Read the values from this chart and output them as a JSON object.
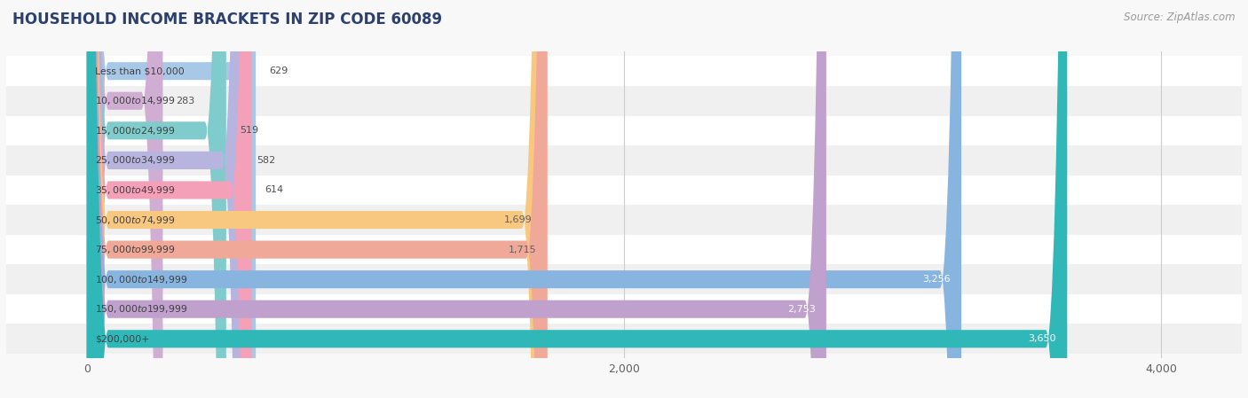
{
  "title": "HOUSEHOLD INCOME BRACKETS IN ZIP CODE 60089",
  "source": "Source: ZipAtlas.com",
  "categories": [
    "Less than $10,000",
    "$10,000 to $14,999",
    "$15,000 to $24,999",
    "$25,000 to $34,999",
    "$35,000 to $49,999",
    "$50,000 to $74,999",
    "$75,000 to $99,999",
    "$100,000 to $149,999",
    "$150,000 to $199,999",
    "$200,000+"
  ],
  "values": [
    629,
    283,
    519,
    582,
    614,
    1699,
    1715,
    3256,
    2753,
    3650
  ],
  "bar_colors": [
    "#a8c8e8",
    "#d0aed4",
    "#80cccc",
    "#b8b4e0",
    "#f4a0b8",
    "#f8c880",
    "#f0a898",
    "#88b4e0",
    "#c0a0cc",
    "#30b8b8"
  ],
  "label_colors": [
    "#606060",
    "#606060",
    "#606060",
    "#606060",
    "#606060",
    "#606060",
    "#606060",
    "#ffffff",
    "#ffffff",
    "#ffffff"
  ],
  "xlim": [
    -300,
    4300
  ],
  "xticks": [
    0,
    2000,
    4000
  ],
  "background_color": "#f8f8f8",
  "row_bg_colors": [
    "#ffffff",
    "#f0f0f0"
  ],
  "grid_color": "#cccccc",
  "title_color": "#2c4070",
  "title_fontsize": 12,
  "source_fontsize": 8.5,
  "bar_height": 0.6,
  "figsize": [
    14.06,
    4.49
  ],
  "dpi": 100
}
